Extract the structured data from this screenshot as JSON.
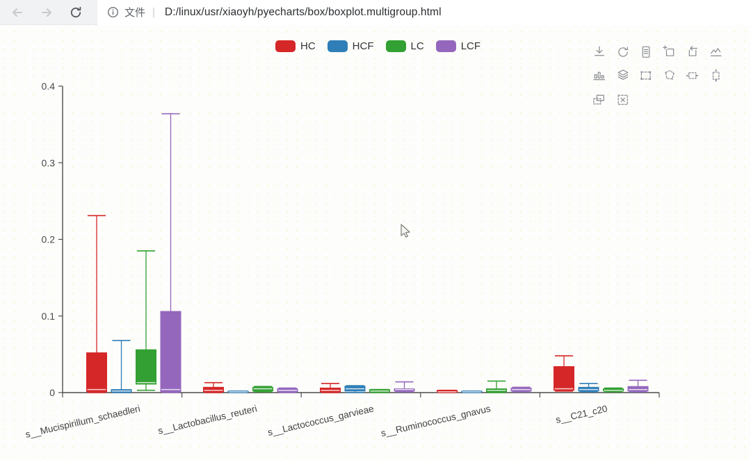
{
  "browser": {
    "security_label": "文件",
    "separator": "|",
    "url": "D:/linux/usr/xiaoyh/pyecharts/box/boxplot.multigroup.html"
  },
  "toolbox": {
    "icons": [
      {
        "name": "save-as-image-icon"
      },
      {
        "name": "restore-icon"
      },
      {
        "name": "data-view-icon"
      },
      {
        "name": "data-zoom-icon"
      },
      {
        "name": "data-zoom-reset-icon"
      },
      {
        "name": "magic-type-line-icon"
      },
      {
        "name": "magic-type-bar-icon"
      },
      {
        "name": "magic-type-stack-icon"
      },
      {
        "name": "brush-rect-icon"
      },
      {
        "name": "brush-polygon-icon"
      },
      {
        "name": "brush-linex-icon"
      },
      {
        "name": "brush-liney-icon"
      },
      {
        "name": "brush-keep-icon"
      },
      {
        "name": "brush-clear-icon"
      }
    ]
  },
  "chart_data": {
    "type": "boxplot",
    "title": "",
    "legend_position": "top-center",
    "grid": false,
    "categories": [
      "s__Mucispirillum_schaedleri",
      "s__Lactobacillus_reuteri",
      "s__Lactococcus_garvieae",
      "s__Ruminococcus_gnavus",
      "s__C21_c20"
    ],
    "ylim": [
      0,
      0.4
    ],
    "yticks": [
      "0",
      "0.1",
      "0.2",
      "0.3",
      "0.4"
    ],
    "ytick_values": [
      0,
      0.1,
      0.2,
      0.3,
      0.4
    ],
    "series": [
      {
        "name": "HC",
        "color": "#d62728",
        "boxes": [
          [
            0,
            0.001,
            0.004,
            0.052,
            0.231
          ],
          [
            0,
            0.001,
            0.003,
            0.007,
            0.013
          ],
          [
            0,
            0.001,
            0.003,
            0.006,
            0.012
          ],
          [
            0,
            0.0005,
            0.001,
            0.003,
            0.003
          ],
          [
            0.002,
            0.003,
            0.005,
            0.034,
            0.048
          ]
        ]
      },
      {
        "name": "HCF",
        "color": "#2f7eb8",
        "boxes": [
          [
            0,
            0.001,
            0.002,
            0.004,
            0.068
          ],
          [
            0,
            0.0005,
            0.001,
            0.002,
            0.002
          ],
          [
            0,
            0.002,
            0.005,
            0.0085,
            0.009
          ],
          [
            0,
            0.0005,
            0.001,
            0.002,
            0.002
          ],
          [
            0.001,
            0.002,
            0.004,
            0.007,
            0.012
          ]
        ]
      },
      {
        "name": "LC",
        "color": "#32a032",
        "boxes": [
          [
            0.003,
            0.011,
            0.013,
            0.056,
            0.185
          ],
          [
            0.001,
            0.002,
            0.005,
            0.007,
            0.008
          ],
          [
            0,
            0.001,
            0.002,
            0.004,
            0.004
          ],
          [
            0,
            0.001,
            0.003,
            0.005,
            0.015
          ],
          [
            0.001,
            0.002,
            0.003,
            0.005,
            0.006
          ]
        ]
      },
      {
        "name": "LCF",
        "color": "#9467bd",
        "boxes": [
          [
            0,
            0.001,
            0.004,
            0.106,
            0.364
          ],
          [
            0,
            0.001,
            0.003,
            0.005,
            0.006
          ],
          [
            0.001,
            0.002,
            0.004,
            0.005,
            0.014
          ],
          [
            0.001,
            0.002,
            0.004,
            0.006,
            0.007
          ],
          [
            0.001,
            0.002,
            0.004,
            0.008,
            0.016
          ]
        ]
      }
    ]
  }
}
